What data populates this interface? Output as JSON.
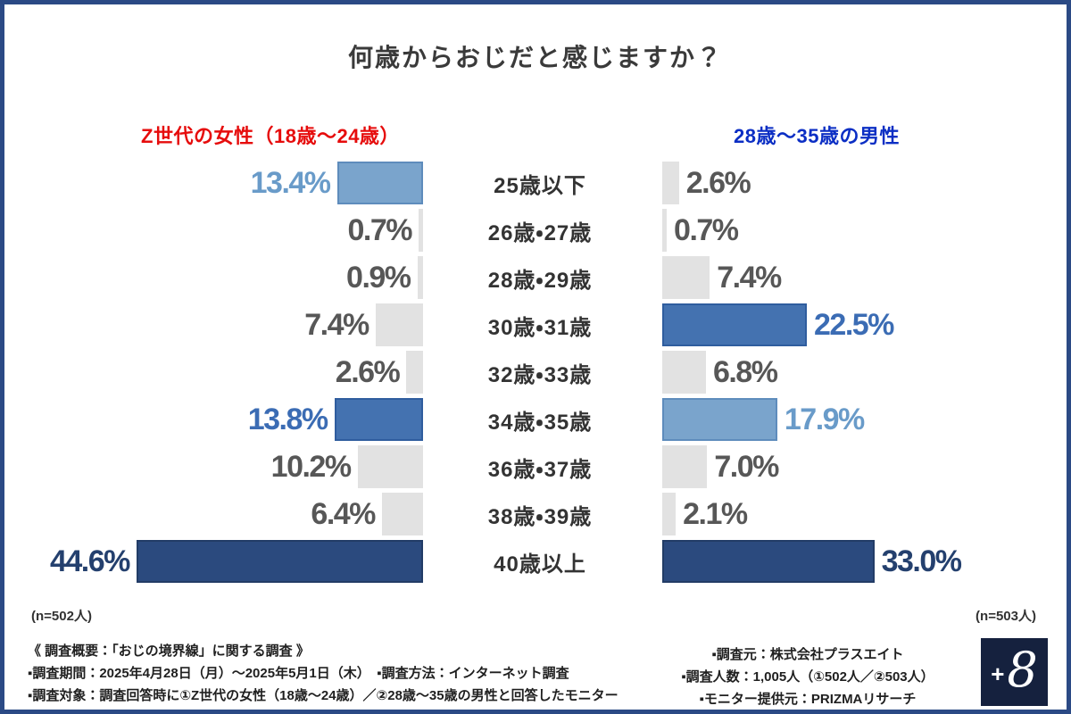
{
  "frame": {
    "border_color": "#2b4a85",
    "background": "#ffffff"
  },
  "title": "何歳からおじだと感じますか？",
  "left_group": {
    "label": "Z世代の女性（18歳〜24歳）",
    "color": "#e60c0c",
    "n_label": "(n=502人)"
  },
  "right_group": {
    "label": "28歳〜35歳の男性",
    "color": "#0b2ec4",
    "n_label": "(n=503人)"
  },
  "colors": {
    "bar": {
      "gray": "#e2e2e2",
      "light": "#7aa4cc",
      "mid": "#4472b0",
      "navy": "#2b4a7e"
    },
    "bar_border": {
      "gray": "transparent",
      "light": "#5e8cbc",
      "mid": "#2f5d9e",
      "navy": "#223c66"
    },
    "text": {
      "gray": "#575757",
      "light": "#699bc9",
      "mid": "#3b6cb4",
      "navy": "#24406e"
    },
    "category_text": "#333333",
    "title_text": "#3a3a3a",
    "logo_background": "#15213e"
  },
  "rows": [
    {
      "category": "25歳以下",
      "left": {
        "value": 13.4,
        "label": "13.4%",
        "color": "light"
      },
      "right": {
        "value": 2.6,
        "label": "2.6%",
        "color": "gray"
      }
    },
    {
      "category": "26歳・27歳",
      "left": {
        "value": 0.7,
        "label": "0.7%",
        "color": "gray"
      },
      "right": {
        "value": 0.7,
        "label": "0.7%",
        "color": "gray"
      }
    },
    {
      "category": "28歳・29歳",
      "left": {
        "value": 0.9,
        "label": "0.9%",
        "color": "gray"
      },
      "right": {
        "value": 7.4,
        "label": "7.4%",
        "color": "gray"
      }
    },
    {
      "category": "30歳・31歳",
      "left": {
        "value": 7.4,
        "label": "7.4%",
        "color": "gray"
      },
      "right": {
        "value": 22.5,
        "label": "22.5%",
        "color": "mid"
      }
    },
    {
      "category": "32歳・33歳",
      "left": {
        "value": 2.6,
        "label": "2.6%",
        "color": "gray"
      },
      "right": {
        "value": 6.8,
        "label": "6.8%",
        "color": "gray"
      }
    },
    {
      "category": "34歳・35歳",
      "left": {
        "value": 13.8,
        "label": "13.8%",
        "color": "mid"
      },
      "right": {
        "value": 17.9,
        "label": "17.9%",
        "color": "light"
      }
    },
    {
      "category": "36歳・37歳",
      "left": {
        "value": 10.2,
        "label": "10.2%",
        "color": "gray"
      },
      "right": {
        "value": 7.0,
        "label": "7.0%",
        "color": "gray"
      }
    },
    {
      "category": "38歳・39歳",
      "left": {
        "value": 6.4,
        "label": "6.4%",
        "color": "gray"
      },
      "right": {
        "value": 2.1,
        "label": "2.1%",
        "color": "gray"
      }
    },
    {
      "category": "40歳以上",
      "left": {
        "value": 44.6,
        "label": "44.6%",
        "color": "navy"
      },
      "right": {
        "value": 33.0,
        "label": "33.0%",
        "color": "navy"
      }
    }
  ],
  "footer": {
    "line1": "《 調査概要：「おじの境界線」に関する調査 》",
    "line2": "▪調査期間：2025年4月28日（月）〜2025年5月1日（木）　▪調査方法：インターネット調査",
    "line3": "▪調査対象：調査回答時に①Z世代の女性（18歳〜24歳）／②28歳〜35歳の男性と回答したモニター",
    "right_lines": [
      "▪調査元：株式会社プラスエイト",
      "▪調査人数：1,005人（①502人／②503人）",
      "▪モニター提供元：PRIZMAリサーチ"
    ]
  },
  "logo": {
    "plus": "+",
    "eight": "8"
  },
  "chart_data": {
    "type": "bar",
    "variant": "butterfly-horizontal",
    "title": "何歳からおじだと感じますか？",
    "categories": [
      "25歳以下",
      "26歳・27歳",
      "28歳・29歳",
      "30歳・31歳",
      "32歳・33歳",
      "34歳・35歳",
      "36歳・37歳",
      "38歳・39歳",
      "40歳以上"
    ],
    "series": [
      {
        "name": "Z世代の女性（18歳〜24歳）",
        "n": 502,
        "unit": "%",
        "direction": "left",
        "values": [
          13.4,
          0.7,
          0.9,
          7.4,
          2.6,
          13.8,
          10.2,
          6.4,
          44.6
        ]
      },
      {
        "name": "28歳〜35歳の男性",
        "n": 503,
        "unit": "%",
        "direction": "right",
        "values": [
          2.6,
          0.7,
          7.4,
          22.5,
          6.8,
          17.9,
          7.0,
          2.1,
          33.0
        ]
      }
    ],
    "xlim": [
      0,
      45
    ],
    "grid": false,
    "legend_position": "top-as-column-headers",
    "value_labels": true,
    "highlights": {
      "left": {
        "25歳以下": "light-blue",
        "34歳・35歳": "mid-blue",
        "40歳以上": "dark-navy"
      },
      "right": {
        "30歳・31歳": "mid-blue",
        "34歳・35歳": "light-blue",
        "40歳以上": "dark-navy"
      }
    }
  }
}
